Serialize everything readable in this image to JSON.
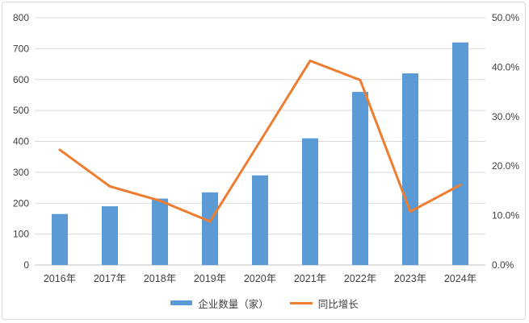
{
  "chart_data": {
    "type": "combo",
    "title": "",
    "xlabel": "",
    "ylabel": "",
    "grid": true,
    "legend_position": "bottom",
    "categories": [
      "2016年",
      "2017年",
      "2018年",
      "2019年",
      "2020年",
      "2021年",
      "2022年",
      "2023年",
      "2024年"
    ],
    "series": [
      {
        "name": "企业数量（家）",
        "type": "bar",
        "axis": "left",
        "color": "#5B9BD5",
        "values": [
          165,
          190,
          215,
          235,
          290,
          410,
          560,
          620,
          720
        ]
      },
      {
        "name": "同比增长",
        "type": "line",
        "axis": "right",
        "color": "#ED7D31",
        "values": [
          23.3,
          15.9,
          13.0,
          8.8,
          25.0,
          41.3,
          37.4,
          10.8,
          16.2
        ]
      }
    ],
    "left_axis": {
      "min": 0,
      "max": 800,
      "step": 100,
      "tick_labels": [
        "0",
        "100",
        "200",
        "300",
        "400",
        "500",
        "600",
        "700",
        "800"
      ]
    },
    "right_axis": {
      "min": 0,
      "max": 50,
      "step": 10,
      "tick_labels": [
        "0.0%",
        "10.0%",
        "20.0%",
        "30.0%",
        "40.0%",
        "50.0%"
      ]
    }
  },
  "colors": {
    "bar": "#5B9BD5",
    "line": "#ED7D31",
    "grid": "#D9D9D9",
    "axis": "#C0C0C0",
    "text": "#404040",
    "border": "#D9D9D9"
  }
}
